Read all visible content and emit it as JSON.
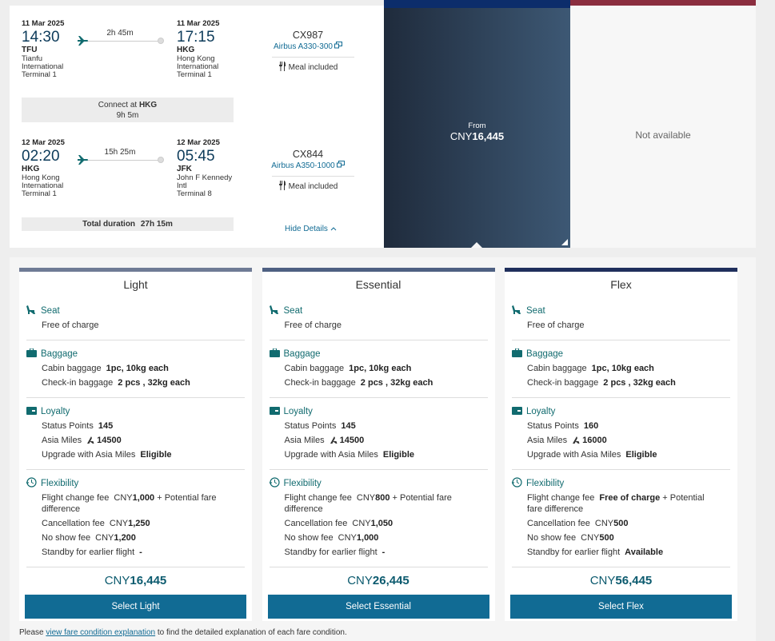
{
  "flight": {
    "legs": [
      {
        "departure": {
          "date": "11 Mar 2025",
          "time": "14:30",
          "code": "TFU",
          "airport": [
            "Tianfu",
            "International",
            "Terminal 1"
          ]
        },
        "duration": "2h 45m",
        "arrival": {
          "date": "11 Mar 2025",
          "time": "17:15",
          "code": "HKG",
          "airport": [
            "Hong Kong",
            "International",
            "Terminal 1"
          ]
        },
        "flight_number": "CX987",
        "aircraft": "Airbus A330-300",
        "meal": "Meal included"
      },
      {
        "departure": {
          "date": "12 Mar 2025",
          "time": "02:20",
          "code": "HKG",
          "airport": [
            "Hong Kong",
            "International",
            "Terminal 1"
          ]
        },
        "duration": "15h 25m",
        "arrival": {
          "date": "12 Mar 2025",
          "time": "05:45",
          "code": "JFK",
          "airport": [
            "John F Kennedy",
            "Intl",
            "Terminal 8"
          ]
        },
        "flight_number": "CX844",
        "aircraft": "Airbus A350-1000",
        "meal": "Meal included"
      }
    ],
    "connection": {
      "label": "Connect at",
      "airport": "HKG",
      "duration": "9h 5m"
    },
    "total_duration": {
      "label": "Total duration",
      "value": "27h 15m"
    },
    "hide_details": "Hide Details"
  },
  "cabins": [
    {
      "from": "From",
      "currency": "CNY",
      "price": "16,445"
    },
    {
      "status": "Not available"
    }
  ],
  "fares": [
    {
      "name": "Light",
      "seat": {
        "title": "Seat",
        "value": "Free of charge"
      },
      "baggage": {
        "title": "Baggage",
        "items": [
          {
            "label": "Cabin baggage",
            "value": "1pc, 10kg each"
          },
          {
            "label": "Check-in baggage",
            "value": "2 pcs , 32kg each"
          }
        ]
      },
      "loyalty": {
        "title": "Loyalty",
        "items": [
          {
            "label": "Status Points",
            "value": "145"
          },
          {
            "label": "Asia Miles",
            "value": "14500"
          },
          {
            "label": "Upgrade with Asia Miles",
            "value": "Eligible"
          }
        ]
      },
      "flexibility": {
        "title": "Flexibility",
        "items": [
          {
            "label": "Flight change fee",
            "currency": "CNY",
            "value": "1,000",
            "note": "+ Potential fare difference"
          },
          {
            "label": "Cancellation fee",
            "currency": "CNY",
            "value": "1,250"
          },
          {
            "label": "No show fee",
            "currency": "CNY",
            "value": "1,200"
          },
          {
            "label": "Standby for earlier flight",
            "value": "-"
          }
        ]
      },
      "price": {
        "currency": "CNY",
        "value": "16,445"
      },
      "button": "Select Light"
    },
    {
      "name": "Essential",
      "seat": {
        "title": "Seat",
        "value": "Free of charge"
      },
      "baggage": {
        "title": "Baggage",
        "items": [
          {
            "label": "Cabin baggage",
            "value": "1pc, 10kg each"
          },
          {
            "label": "Check-in baggage",
            "value": "2 pcs , 32kg each"
          }
        ]
      },
      "loyalty": {
        "title": "Loyalty",
        "items": [
          {
            "label": "Status Points",
            "value": "145"
          },
          {
            "label": "Asia Miles",
            "value": "14500"
          },
          {
            "label": "Upgrade with Asia Miles",
            "value": "Eligible"
          }
        ]
      },
      "flexibility": {
        "title": "Flexibility",
        "items": [
          {
            "label": "Flight change fee",
            "currency": "CNY",
            "value": "800",
            "note": "+ Potential fare difference"
          },
          {
            "label": "Cancellation fee",
            "currency": "CNY",
            "value": "1,050"
          },
          {
            "label": "No show fee",
            "currency": "CNY",
            "value": "1,000"
          },
          {
            "label": "Standby for earlier flight",
            "value": "-"
          }
        ]
      },
      "price": {
        "currency": "CNY",
        "value": "26,445"
      },
      "button": "Select Essential"
    },
    {
      "name": "Flex",
      "seat": {
        "title": "Seat",
        "value": "Free of charge"
      },
      "baggage": {
        "title": "Baggage",
        "items": [
          {
            "label": "Cabin baggage",
            "value": "1pc, 10kg each"
          },
          {
            "label": "Check-in baggage",
            "value": "2 pcs , 32kg each"
          }
        ]
      },
      "loyalty": {
        "title": "Loyalty",
        "items": [
          {
            "label": "Status Points",
            "value": "160"
          },
          {
            "label": "Asia Miles",
            "value": "16000"
          },
          {
            "label": "Upgrade with Asia Miles",
            "value": "Eligible"
          }
        ]
      },
      "flexibility": {
        "title": "Flexibility",
        "items": [
          {
            "label": "Flight change fee",
            "value": "Free of charge",
            "note": "+ Potential fare difference"
          },
          {
            "label": "Cancellation fee",
            "currency": "CNY",
            "value": "500"
          },
          {
            "label": "No show fee",
            "currency": "CNY",
            "value": "500"
          },
          {
            "label": "Standby for earlier flight",
            "value": "Available"
          }
        ]
      },
      "price": {
        "currency": "CNY",
        "value": "56,445"
      },
      "button": "Select Flex"
    }
  ],
  "footer": {
    "before": "Please",
    "link": "view fare condition explanation",
    "after": "to find the detailed explanation of each fare condition."
  }
}
